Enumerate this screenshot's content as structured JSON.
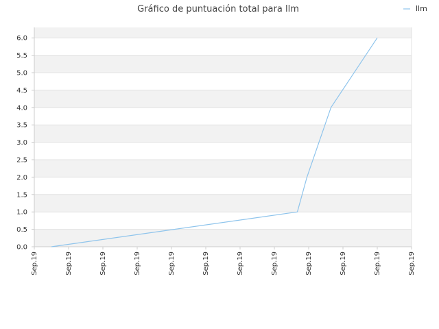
{
  "colors": {
    "series": "#8ec4ec",
    "band": "#f2f2f2",
    "grid": "#e3e3e3",
    "axis": "#cccccc",
    "text": "#444444"
  },
  "chart_data": {
    "type": "line",
    "title": "Gráfico de puntuación total para llm",
    "xlabel": "",
    "ylabel": "",
    "ylim": [
      0,
      6.3
    ],
    "yticks": [
      0.0,
      0.5,
      1.0,
      1.5,
      2.0,
      2.5,
      3.0,
      3.5,
      4.0,
      4.5,
      5.0,
      5.5,
      6.0
    ],
    "ytick_labels": [
      "0.0",
      "0.5",
      "1.0",
      "1.5",
      "2.0",
      "2.5",
      "3.0",
      "3.5",
      "4.0",
      "4.5",
      "5.0",
      "5.5",
      "6.0"
    ],
    "xlim": [
      0,
      11
    ],
    "xticks": [
      0,
      1,
      2,
      3,
      4,
      5,
      6,
      7,
      8,
      9,
      10,
      11
    ],
    "xtick_labels": [
      "Sep.19",
      "Sep.19",
      "Sep.19",
      "Sep.19",
      "Sep.19",
      "Sep.19",
      "Sep.19",
      "Sep.19",
      "Sep.19",
      "Sep.19",
      "Sep.19",
      "Sep.19"
    ],
    "grid": true,
    "legend": "top-right",
    "series": [
      {
        "name": "llm",
        "x": [
          0.5,
          7.67,
          7.95,
          8.65,
          10.0
        ],
        "y": [
          0.0,
          1.0,
          2.0,
          4.0,
          6.0
        ]
      }
    ]
  }
}
